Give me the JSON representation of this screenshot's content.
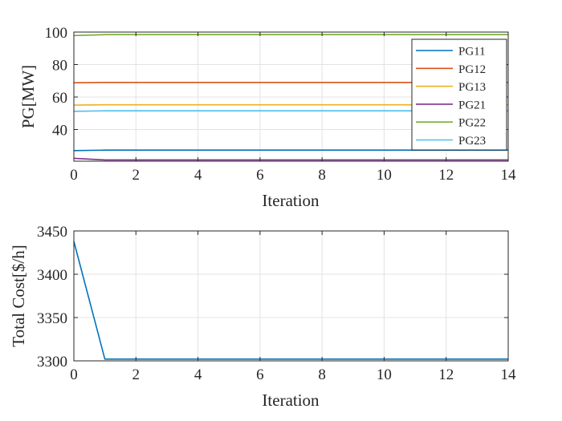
{
  "chart_data": [
    {
      "type": "line",
      "xlabel": "Iteration",
      "ylabel": "PG[MW]",
      "xlim": [
        0,
        14
      ],
      "ylim": [
        20.5,
        100
      ],
      "xticks": [
        "0",
        "2",
        "4",
        "6",
        "8",
        "10",
        "12",
        "14"
      ],
      "yticks": [
        "40",
        "60",
        "80",
        "100"
      ],
      "grid": true,
      "legend": "top-right",
      "x": [
        0,
        1,
        2,
        3,
        4,
        5,
        6,
        7,
        8,
        9,
        10,
        11,
        12,
        13,
        14
      ],
      "series": [
        {
          "name": "PG11",
          "color": "#0072BD",
          "values": [
            27.0,
            27.3,
            27.3,
            27.3,
            27.3,
            27.3,
            27.3,
            27.3,
            27.3,
            27.3,
            27.3,
            27.3,
            27.3,
            27.3,
            27.3
          ]
        },
        {
          "name": "PG12",
          "color": "#D95319",
          "values": [
            68.8,
            69.0,
            69.0,
            69.0,
            69.0,
            69.0,
            69.0,
            69.0,
            69.0,
            69.0,
            69.0,
            69.0,
            69.0,
            69.0,
            69.0
          ]
        },
        {
          "name": "PG13",
          "color": "#EDB120",
          "values": [
            55.0,
            55.2,
            55.2,
            55.2,
            55.2,
            55.2,
            55.2,
            55.2,
            55.2,
            55.2,
            55.2,
            55.2,
            55.2,
            55.2,
            55.2
          ]
        },
        {
          "name": "PG21",
          "color": "#7E2F8E",
          "values": [
            22.3,
            21.3,
            21.3,
            21.3,
            21.3,
            21.3,
            21.3,
            21.3,
            21.3,
            21.3,
            21.3,
            21.3,
            21.3,
            21.3,
            21.3
          ]
        },
        {
          "name": "PG22",
          "color": "#77AC30",
          "values": [
            97.9,
            98.4,
            98.4,
            98.4,
            98.4,
            98.4,
            98.4,
            98.4,
            98.4,
            98.4,
            98.4,
            98.4,
            98.4,
            98.4,
            98.4
          ]
        },
        {
          "name": "PG23",
          "color": "#4DBEEE",
          "values": [
            51.2,
            51.5,
            51.5,
            51.5,
            51.5,
            51.5,
            51.5,
            51.5,
            51.5,
            51.5,
            51.5,
            51.5,
            51.5,
            51.5,
            51.5
          ]
        }
      ]
    },
    {
      "type": "line",
      "xlabel": "Iteration",
      "ylabel": "Total Cost[$/h]",
      "xlim": [
        0,
        14
      ],
      "ylim": [
        3300,
        3450
      ],
      "xticks": [
        "0",
        "2",
        "4",
        "6",
        "8",
        "10",
        "12",
        "14"
      ],
      "yticks": [
        "3300",
        "3350",
        "3400",
        "3450"
      ],
      "grid": true,
      "x": [
        0,
        1,
        2,
        3,
        4,
        5,
        6,
        7,
        8,
        9,
        10,
        11,
        12,
        13,
        14
      ],
      "series": [
        {
          "color": "#0072BD",
          "values": [
            3438,
            3302,
            3302,
            3302,
            3302,
            3302,
            3302,
            3302,
            3302,
            3302,
            3302,
            3302,
            3302,
            3302,
            3302
          ]
        }
      ]
    }
  ]
}
